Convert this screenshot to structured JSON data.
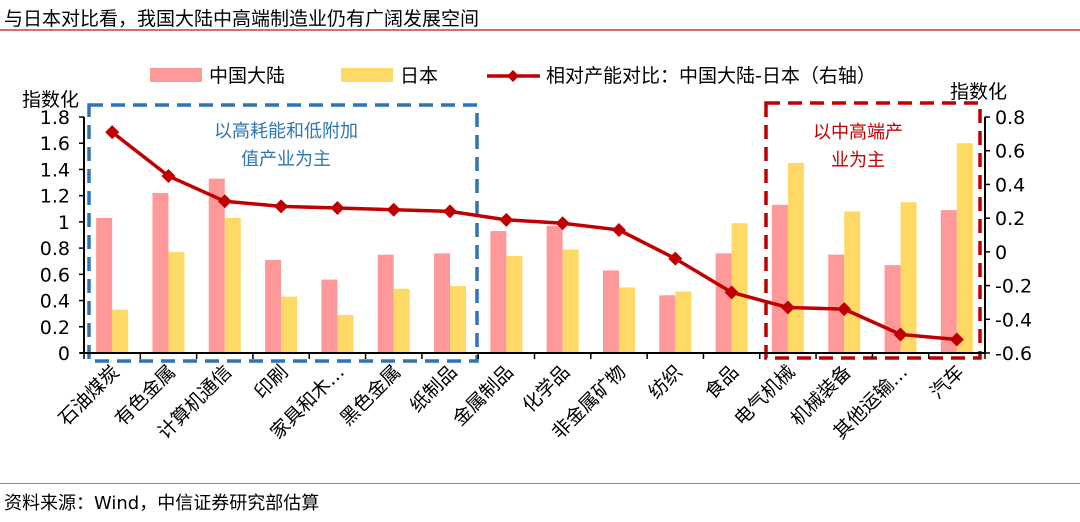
{
  "header": {
    "title": "与日本对比看，我国大陆中高端制造业仍有广阔发展空间"
  },
  "footer": {
    "source": "资料来源：Wind，中信证券研究部估算"
  },
  "chart_data": {
    "type": "bar",
    "title": "与日本对比看，我国大陆中高端制造业仍有广阔发展空间",
    "ylabel_left": "指数化",
    "ylabel_right": "指数化",
    "ylim_left": [
      0,
      1.8
    ],
    "ylim_right": [
      -0.6,
      0.8
    ],
    "yticks_left": [
      "0",
      "0.2",
      "0.4",
      "0.6",
      "0.8",
      "1",
      "1.2",
      "1.4",
      "1.6",
      "1.8"
    ],
    "yticks_right": [
      "-0.6",
      "-0.4",
      "-0.2",
      "0",
      "0.2",
      "0.4",
      "0.6",
      "0.8"
    ],
    "grid": false,
    "legend_position": "top",
    "categories": [
      "石油煤炭",
      "有色金属",
      "计算机通信",
      "印刷",
      "家具和木…",
      "黑色金属",
      "纸制品",
      "金属制品",
      "化学品",
      "非金属矿物",
      "纺织",
      "食品",
      "电气机械",
      "机械装备",
      "其他运输…",
      "汽车"
    ],
    "series": [
      {
        "name": "中国大陆",
        "type": "bar",
        "axis": "left",
        "color": "#ff9999",
        "values": [
          1.03,
          1.22,
          1.33,
          0.71,
          0.56,
          0.75,
          0.76,
          0.93,
          0.97,
          0.63,
          0.44,
          0.76,
          1.13,
          0.75,
          0.67,
          1.09
        ]
      },
      {
        "name": "日本",
        "type": "bar",
        "axis": "left",
        "color": "#ffd966",
        "values": [
          0.33,
          0.77,
          1.03,
          0.43,
          0.29,
          0.49,
          0.51,
          0.74,
          0.79,
          0.5,
          0.47,
          0.99,
          1.45,
          1.08,
          1.15,
          1.6
        ]
      },
      {
        "name": "相对产能对比：中国大陆-日本（右轴）",
        "type": "line",
        "axis": "right",
        "color": "#c00000",
        "marker": "diamond",
        "values": [
          0.71,
          0.45,
          0.3,
          0.27,
          0.26,
          0.25,
          0.24,
          0.19,
          0.17,
          0.13,
          -0.04,
          -0.24,
          -0.33,
          -0.34,
          -0.49,
          -0.52
        ]
      }
    ],
    "annotations": [
      {
        "text": "以高耗能和低附加\n值产业为主",
        "color": "#2e75b6",
        "style": "dashed-box",
        "covers_categories": [
          "石油煤炭",
          "纸制品"
        ]
      },
      {
        "text": "以中高端产\n业为主",
        "color": "#c00000",
        "style": "dashed-box",
        "covers_categories": [
          "电气机械",
          "汽车"
        ]
      }
    ]
  }
}
